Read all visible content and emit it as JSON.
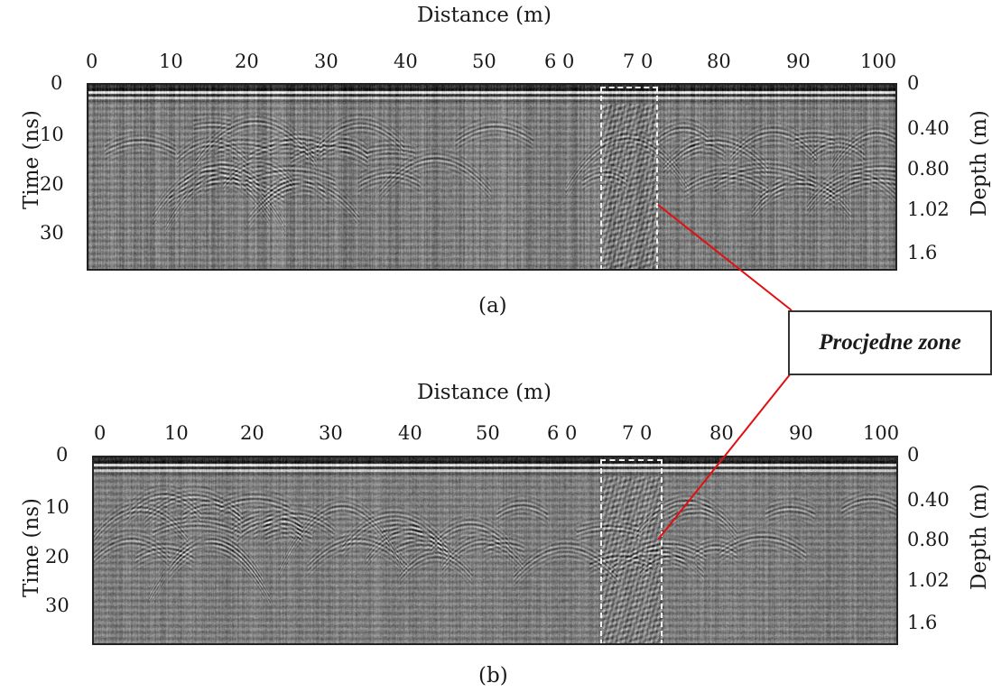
{
  "panels": [
    {
      "x_axis_title": "Distance (m)",
      "x_ticks": [
        "0",
        "10",
        "20",
        "30",
        "40",
        "50",
        "6 0",
        "7 0",
        "80",
        "90",
        "100"
      ],
      "time_axis_title": "Time (ns)",
      "time_ticks": [
        "0",
        "10",
        "20",
        "30"
      ],
      "depth_axis_title": "Depth (m)",
      "depth_ticks": [
        "0",
        "0.40",
        "0.80",
        "1.02",
        "1.6"
      ],
      "caption": "(a)"
    },
    {
      "x_axis_title": "Distance (m)",
      "x_ticks": [
        "0",
        "10",
        "20",
        "30",
        "40",
        "50",
        "6 0",
        "7 0",
        "80",
        "90",
        "100"
      ],
      "time_axis_title": "Time (ns)",
      "time_ticks": [
        "0",
        "10",
        "20",
        "30"
      ],
      "depth_axis_title": "Depth (m)",
      "depth_ticks": [
        "0",
        "0.40",
        "0.80",
        "1.02",
        "1.6"
      ],
      "caption": "(b)"
    }
  ],
  "callout": {
    "label": "Procjedne zone"
  },
  "colors": {
    "leader_line": "#e01010",
    "zone_box": "#f2f2f2",
    "radargram_base": "#7d7d7d"
  }
}
